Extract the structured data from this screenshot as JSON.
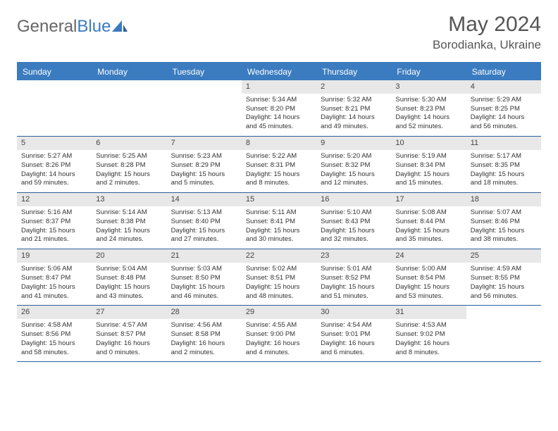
{
  "logo": {
    "word1": "General",
    "word2": "Blue"
  },
  "title": "May 2024",
  "location": "Borodianka, Ukraine",
  "colors": {
    "header_bar": "#3b7bbf",
    "header_text": "#ffffff",
    "daynum_bg": "#e8e8e8",
    "border": "#2f5f9a",
    "text": "#333333",
    "title_text": "#555555"
  },
  "fonts": {
    "title_size": 30,
    "location_size": 17,
    "weekday_size": 12,
    "daynum_size": 11,
    "body_size": 9.5
  },
  "weekdays": [
    "Sunday",
    "Monday",
    "Tuesday",
    "Wednesday",
    "Thursday",
    "Friday",
    "Saturday"
  ],
  "weeks": [
    [
      {
        "n": "",
        "sr": "",
        "ss": "",
        "dl": ""
      },
      {
        "n": "",
        "sr": "",
        "ss": "",
        "dl": ""
      },
      {
        "n": "",
        "sr": "",
        "ss": "",
        "dl": ""
      },
      {
        "n": "1",
        "sr": "Sunrise: 5:34 AM",
        "ss": "Sunset: 8:20 PM",
        "dl": "Daylight: 14 hours and 45 minutes."
      },
      {
        "n": "2",
        "sr": "Sunrise: 5:32 AM",
        "ss": "Sunset: 8:21 PM",
        "dl": "Daylight: 14 hours and 49 minutes."
      },
      {
        "n": "3",
        "sr": "Sunrise: 5:30 AM",
        "ss": "Sunset: 8:23 PM",
        "dl": "Daylight: 14 hours and 52 minutes."
      },
      {
        "n": "4",
        "sr": "Sunrise: 5:29 AM",
        "ss": "Sunset: 8:25 PM",
        "dl": "Daylight: 14 hours and 56 minutes."
      }
    ],
    [
      {
        "n": "5",
        "sr": "Sunrise: 5:27 AM",
        "ss": "Sunset: 8:26 PM",
        "dl": "Daylight: 14 hours and 59 minutes."
      },
      {
        "n": "6",
        "sr": "Sunrise: 5:25 AM",
        "ss": "Sunset: 8:28 PM",
        "dl": "Daylight: 15 hours and 2 minutes."
      },
      {
        "n": "7",
        "sr": "Sunrise: 5:23 AM",
        "ss": "Sunset: 8:29 PM",
        "dl": "Daylight: 15 hours and 5 minutes."
      },
      {
        "n": "8",
        "sr": "Sunrise: 5:22 AM",
        "ss": "Sunset: 8:31 PM",
        "dl": "Daylight: 15 hours and 8 minutes."
      },
      {
        "n": "9",
        "sr": "Sunrise: 5:20 AM",
        "ss": "Sunset: 8:32 PM",
        "dl": "Daylight: 15 hours and 12 minutes."
      },
      {
        "n": "10",
        "sr": "Sunrise: 5:19 AM",
        "ss": "Sunset: 8:34 PM",
        "dl": "Daylight: 15 hours and 15 minutes."
      },
      {
        "n": "11",
        "sr": "Sunrise: 5:17 AM",
        "ss": "Sunset: 8:35 PM",
        "dl": "Daylight: 15 hours and 18 minutes."
      }
    ],
    [
      {
        "n": "12",
        "sr": "Sunrise: 5:16 AM",
        "ss": "Sunset: 8:37 PM",
        "dl": "Daylight: 15 hours and 21 minutes."
      },
      {
        "n": "13",
        "sr": "Sunrise: 5:14 AM",
        "ss": "Sunset: 8:38 PM",
        "dl": "Daylight: 15 hours and 24 minutes."
      },
      {
        "n": "14",
        "sr": "Sunrise: 5:13 AM",
        "ss": "Sunset: 8:40 PM",
        "dl": "Daylight: 15 hours and 27 minutes."
      },
      {
        "n": "15",
        "sr": "Sunrise: 5:11 AM",
        "ss": "Sunset: 8:41 PM",
        "dl": "Daylight: 15 hours and 30 minutes."
      },
      {
        "n": "16",
        "sr": "Sunrise: 5:10 AM",
        "ss": "Sunset: 8:43 PM",
        "dl": "Daylight: 15 hours and 32 minutes."
      },
      {
        "n": "17",
        "sr": "Sunrise: 5:08 AM",
        "ss": "Sunset: 8:44 PM",
        "dl": "Daylight: 15 hours and 35 minutes."
      },
      {
        "n": "18",
        "sr": "Sunrise: 5:07 AM",
        "ss": "Sunset: 8:46 PM",
        "dl": "Daylight: 15 hours and 38 minutes."
      }
    ],
    [
      {
        "n": "19",
        "sr": "Sunrise: 5:06 AM",
        "ss": "Sunset: 8:47 PM",
        "dl": "Daylight: 15 hours and 41 minutes."
      },
      {
        "n": "20",
        "sr": "Sunrise: 5:04 AM",
        "ss": "Sunset: 8:48 PM",
        "dl": "Daylight: 15 hours and 43 minutes."
      },
      {
        "n": "21",
        "sr": "Sunrise: 5:03 AM",
        "ss": "Sunset: 8:50 PM",
        "dl": "Daylight: 15 hours and 46 minutes."
      },
      {
        "n": "22",
        "sr": "Sunrise: 5:02 AM",
        "ss": "Sunset: 8:51 PM",
        "dl": "Daylight: 15 hours and 48 minutes."
      },
      {
        "n": "23",
        "sr": "Sunrise: 5:01 AM",
        "ss": "Sunset: 8:52 PM",
        "dl": "Daylight: 15 hours and 51 minutes."
      },
      {
        "n": "24",
        "sr": "Sunrise: 5:00 AM",
        "ss": "Sunset: 8:54 PM",
        "dl": "Daylight: 15 hours and 53 minutes."
      },
      {
        "n": "25",
        "sr": "Sunrise: 4:59 AM",
        "ss": "Sunset: 8:55 PM",
        "dl": "Daylight: 15 hours and 56 minutes."
      }
    ],
    [
      {
        "n": "26",
        "sr": "Sunrise: 4:58 AM",
        "ss": "Sunset: 8:56 PM",
        "dl": "Daylight: 15 hours and 58 minutes."
      },
      {
        "n": "27",
        "sr": "Sunrise: 4:57 AM",
        "ss": "Sunset: 8:57 PM",
        "dl": "Daylight: 16 hours and 0 minutes."
      },
      {
        "n": "28",
        "sr": "Sunrise: 4:56 AM",
        "ss": "Sunset: 8:58 PM",
        "dl": "Daylight: 16 hours and 2 minutes."
      },
      {
        "n": "29",
        "sr": "Sunrise: 4:55 AM",
        "ss": "Sunset: 9:00 PM",
        "dl": "Daylight: 16 hours and 4 minutes."
      },
      {
        "n": "30",
        "sr": "Sunrise: 4:54 AM",
        "ss": "Sunset: 9:01 PM",
        "dl": "Daylight: 16 hours and 6 minutes."
      },
      {
        "n": "31",
        "sr": "Sunrise: 4:53 AM",
        "ss": "Sunset: 9:02 PM",
        "dl": "Daylight: 16 hours and 8 minutes."
      },
      {
        "n": "",
        "sr": "",
        "ss": "",
        "dl": ""
      }
    ]
  ]
}
